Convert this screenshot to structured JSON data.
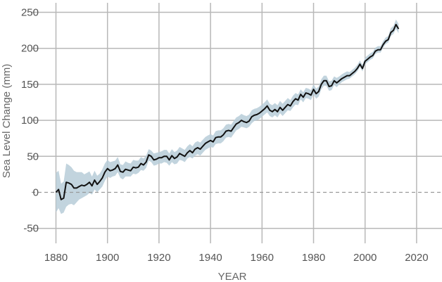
{
  "chart_data": {
    "type": "line",
    "xlabel": "YEAR",
    "ylabel": "Sea Level Change (mm)",
    "xlim": [
      1880,
      2030
    ],
    "ylim": [
      -65,
      255
    ],
    "x_ticks": [
      1880,
      1900,
      1920,
      1940,
      1960,
      1980,
      2000,
      2020
    ],
    "y_ticks": [
      -50,
      0,
      50,
      100,
      150,
      200,
      250
    ],
    "x_tick_labels": [
      "1880",
      "1900",
      "1920",
      "1940",
      "1960",
      "1980",
      "2000",
      "2020"
    ],
    "y_tick_labels": [
      "-50",
      "0",
      "50",
      "100",
      "150",
      "200",
      "250"
    ],
    "grid": true,
    "baseline": 0,
    "colors": {
      "line": "#111111",
      "band": "#b7ccd8",
      "grid": "#b8b8b8",
      "baseline": "#999999"
    },
    "series": [
      {
        "x": [
          1880,
          1881,
          1882,
          1883,
          1884,
          1885,
          1886,
          1887,
          1888,
          1889,
          1890,
          1891,
          1892,
          1893,
          1894,
          1895,
          1896,
          1897,
          1898,
          1899,
          1900,
          1901,
          1902,
          1903,
          1904,
          1905,
          1906,
          1907,
          1908,
          1909,
          1910,
          1911,
          1912,
          1913,
          1914,
          1915,
          1916,
          1917,
          1918,
          1919,
          1920,
          1921,
          1922,
          1923,
          1924,
          1925,
          1926,
          1927,
          1928,
          1929,
          1930,
          1931,
          1932,
          1933,
          1934,
          1935,
          1936,
          1937,
          1938,
          1939,
          1940,
          1941,
          1942,
          1943,
          1944,
          1945,
          1946,
          1947,
          1948,
          1949,
          1950,
          1951,
          1952,
          1953,
          1954,
          1955,
          1956,
          1957,
          1958,
          1959,
          1960,
          1961,
          1962,
          1963,
          1964,
          1965,
          1966,
          1967,
          1968,
          1969,
          1970,
          1971,
          1972,
          1973,
          1974,
          1975,
          1976,
          1977,
          1978,
          1979,
          1980,
          1981,
          1982,
          1983,
          1984,
          1985,
          1986,
          1987,
          1988,
          1989,
          1990,
          1991,
          1992,
          1993,
          1994,
          1995,
          1996,
          1997,
          1998,
          1999,
          2000,
          2001,
          2002,
          2003,
          2004,
          2005,
          2006,
          2007,
          2008,
          2009,
          2010,
          2011,
          2012,
          2013
        ],
        "values": [
          0,
          4,
          -10,
          -8,
          14,
          13,
          11,
          6,
          6,
          8,
          10,
          9,
          11,
          14,
          9,
          17,
          11,
          15,
          20,
          28,
          33,
          30,
          31,
          33,
          38,
          29,
          28,
          32,
          31,
          30,
          35,
          34,
          35,
          40,
          38,
          42,
          52,
          50,
          45,
          46,
          48,
          48,
          50,
          50,
          45,
          51,
          47,
          49,
          54,
          52,
          50,
          55,
          58,
          55,
          60,
          62,
          60,
          64,
          68,
          70,
          72,
          70,
          76,
          77,
          77,
          80,
          85,
          86,
          85,
          90,
          95,
          97,
          100,
          98,
          97,
          99,
          105,
          107,
          108,
          110,
          113,
          116,
          120,
          114,
          112,
          115,
          112,
          118,
          114,
          118,
          122,
          120,
          126,
          130,
          128,
          136,
          132,
          138,
          137,
          135,
          143,
          137,
          140,
          150,
          155,
          155,
          147,
          148,
          155,
          152,
          155,
          158,
          160,
          162,
          162,
          165,
          168,
          172,
          178,
          172,
          182,
          185,
          188,
          190,
          196,
          198,
          198,
          205,
          210,
          212,
          222,
          225,
          233,
          227
        ],
        "lower": [
          -28,
          -22,
          -30,
          -28,
          -20,
          -17,
          -16,
          -18,
          -14,
          -10,
          -8,
          -6,
          -4,
          -1,
          -3,
          4,
          0,
          4,
          8,
          16,
          22,
          20,
          22,
          23,
          28,
          20,
          18,
          22,
          22,
          22,
          26,
          25,
          27,
          31,
          30,
          34,
          44,
          42,
          37,
          38,
          40,
          40,
          42,
          41,
          37,
          42,
          39,
          40,
          45,
          44,
          42,
          47,
          49,
          47,
          51,
          53,
          51,
          55,
          59,
          61,
          63,
          62,
          67,
          68,
          68,
          71,
          76,
          77,
          76,
          81,
          86,
          88,
          91,
          90,
          89,
          91,
          96,
          99,
          100,
          102,
          105,
          108,
          111,
          106,
          104,
          107,
          104,
          110,
          106,
          110,
          114,
          113,
          118,
          122,
          121,
          129,
          125,
          131,
          130,
          128,
          136,
          130,
          133,
          143,
          148,
          148,
          141,
          142,
          149,
          146,
          150,
          153,
          155,
          157,
          158,
          161,
          164,
          168,
          174,
          168,
          178,
          181,
          184,
          186,
          192,
          194,
          194,
          201,
          206,
          208,
          217,
          220,
          227,
          221
        ],
        "upper": [
          27,
          30,
          12,
          15,
          40,
          38,
          35,
          30,
          28,
          28,
          28,
          25,
          27,
          29,
          22,
          30,
          23,
          26,
          32,
          40,
          45,
          42,
          43,
          44,
          49,
          39,
          38,
          43,
          41,
          40,
          45,
          44,
          44,
          49,
          47,
          51,
          60,
          58,
          54,
          55,
          56,
          57,
          59,
          59,
          54,
          60,
          56,
          58,
          63,
          61,
          59,
          64,
          67,
          64,
          69,
          71,
          69,
          73,
          77,
          79,
          81,
          79,
          85,
          86,
          86,
          89,
          94,
          95,
          94,
          99,
          104,
          106,
          109,
          107,
          106,
          108,
          114,
          116,
          117,
          119,
          122,
          125,
          129,
          123,
          121,
          124,
          121,
          127,
          123,
          127,
          131,
          128,
          134,
          138,
          136,
          143,
          139,
          145,
          144,
          142,
          150,
          144,
          147,
          157,
          162,
          162,
          154,
          155,
          161,
          159,
          161,
          164,
          166,
          168,
          167,
          170,
          173,
          177,
          183,
          177,
          187,
          190,
          193,
          195,
          201,
          203,
          203,
          210,
          215,
          217,
          228,
          231,
          240,
          234
        ]
      }
    ]
  }
}
